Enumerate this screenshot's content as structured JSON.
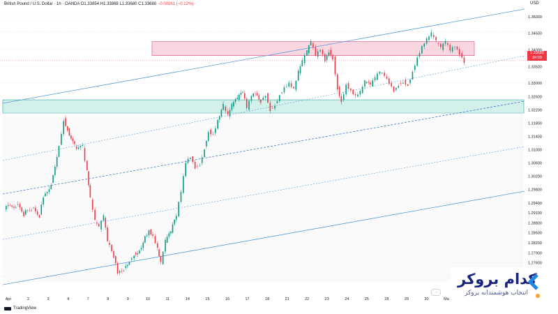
{
  "header": {
    "symbol": "British Pound / U.S. Dollar · 1h · OANDA",
    "open": "O1.33854",
    "high": "H1.33868",
    "low": "L1.33680",
    "close": "C1.33680",
    "change": "−0.00161 (−0.12%)"
  },
  "currency": "USD",
  "current_price": {
    "price": "1.33680",
    "countdown": "34:09"
  },
  "footer": {
    "brand": "TradingView"
  },
  "logo": {
    "title": "کدام بروکر",
    "subtitle": "انتخاب هوشمندانه بروکر"
  },
  "colors": {
    "up": "#089981",
    "down": "#f23645",
    "channel": "#5b9bd5",
    "resistance_zone": "#f8d7e0",
    "support_zone": "#d4f0ea"
  },
  "chart_data": {
    "type": "candlestick",
    "title": "British Pound / U.S. Dollar · 1h · OANDA",
    "ylim": [
      1.2715,
      1.3525
    ],
    "y_ticks": [
      "1.35000",
      "1.34500",
      "1.34000",
      "1.33500",
      "1.33000",
      "1.32600",
      "1.32200",
      "1.31800",
      "1.31400",
      "1.31000",
      "1.30600",
      "1.30200",
      "1.29800",
      "1.29400",
      "1.29100",
      "1.28800",
      "1.28500",
      "1.28200",
      "1.27900",
      "1.27600",
      "1.27300"
    ],
    "x_ticks": [
      "Apr",
      "2",
      "3",
      "4",
      "7",
      "8",
      "9",
      "10",
      "11",
      "14",
      "15",
      "16",
      "17",
      "18",
      "21",
      "22",
      "23",
      "24",
      "25",
      "28",
      "29",
      "30",
      "Ma"
    ],
    "close_path": [
      [
        0,
        1.292
      ],
      [
        1.5,
        1.2935
      ],
      [
        2.5,
        1.2905
      ],
      [
        3.5,
        1.2925
      ],
      [
        4.5,
        1.2905
      ],
      [
        5,
        1.296
      ],
      [
        6,
        1.3
      ],
      [
        7,
        1.3115
      ],
      [
        7.6,
        1.3195
      ],
      [
        8.1,
        1.3165
      ],
      [
        9,
        1.311
      ],
      [
        10,
        1.3105
      ],
      [
        10.6,
        1.3035
      ],
      [
        11,
        1.295
      ],
      [
        11.6,
        1.288
      ],
      [
        12.1,
        1.286
      ],
      [
        12.7,
        1.2895
      ],
      [
        13.2,
        1.282
      ],
      [
        14,
        1.278
      ],
      [
        14.5,
        1.273
      ],
      [
        15.3,
        1.2745
      ],
      [
        16,
        1.277
      ],
      [
        16.6,
        1.279
      ],
      [
        17.3,
        1.28
      ],
      [
        18,
        1.284
      ],
      [
        18.5,
        1.286
      ],
      [
        19,
        1.284
      ],
      [
        19.6,
        1.28
      ],
      [
        20,
        1.2755
      ],
      [
        20.6,
        1.282
      ],
      [
        21.3,
        1.285
      ],
      [
        22,
        1.29
      ],
      [
        22.6,
        1.297
      ],
      [
        23.2,
        1.306
      ],
      [
        23.8,
        1.308
      ],
      [
        24.4,
        1.305
      ],
      [
        25,
        1.306
      ],
      [
        25.6,
        1.311
      ],
      [
        26.1,
        1.316
      ],
      [
        26.7,
        1.315
      ],
      [
        27.3,
        1.319
      ],
      [
        28,
        1.323
      ],
      [
        28.6,
        1.32
      ],
      [
        29.1,
        1.323
      ],
      [
        29.8,
        1.325
      ],
      [
        30.5,
        1.327
      ],
      [
        31,
        1.322
      ],
      [
        31.6,
        1.326
      ],
      [
        32.1,
        1.327
      ],
      [
        32.8,
        1.325
      ],
      [
        33.4,
        1.327
      ],
      [
        34,
        1.3225
      ],
      [
        34.6,
        1.324
      ],
      [
        35.2,
        1.327
      ],
      [
        35.8,
        1.329
      ],
      [
        36.4,
        1.33
      ],
      [
        37,
        1.328
      ],
      [
        37.6,
        1.333
      ],
      [
        38.1,
        1.336
      ],
      [
        38.7,
        1.339
      ],
      [
        39.2,
        1.342
      ],
      [
        39.8,
        1.338
      ],
      [
        40.4,
        1.34
      ],
      [
        41,
        1.337
      ],
      [
        41.5,
        1.34
      ],
      [
        42,
        1.338
      ],
      [
        42.6,
        1.329
      ],
      [
        43.1,
        1.325
      ],
      [
        43.7,
        1.33
      ],
      [
        44.3,
        1.328
      ],
      [
        44.9,
        1.326
      ],
      [
        45.5,
        1.327
      ],
      [
        46.1,
        1.33
      ],
      [
        46.8,
        1.329
      ],
      [
        47.4,
        1.331
      ],
      [
        48,
        1.333
      ],
      [
        48.6,
        1.332
      ],
      [
        49.2,
        1.33
      ],
      [
        49.8,
        1.328
      ],
      [
        50.4,
        1.33
      ],
      [
        51,
        1.331
      ],
      [
        51.6,
        1.33
      ],
      [
        52.2,
        1.334
      ],
      [
        52.8,
        1.338
      ],
      [
        53.4,
        1.341
      ],
      [
        54,
        1.343
      ],
      [
        54.6,
        1.3445
      ],
      [
        55.2,
        1.342
      ],
      [
        55.8,
        1.34
      ],
      [
        56.4,
        1.342
      ],
      [
        57,
        1.3395
      ],
      [
        57.6,
        1.341
      ],
      [
        58.2,
        1.339
      ],
      [
        58.8,
        1.3368
      ]
    ],
    "x_index_range": [
      0,
      65
    ],
    "resistance_zone": [
      1.3383,
      1.3425
    ],
    "support_zone": [
      1.321,
      1.325
    ]
  }
}
